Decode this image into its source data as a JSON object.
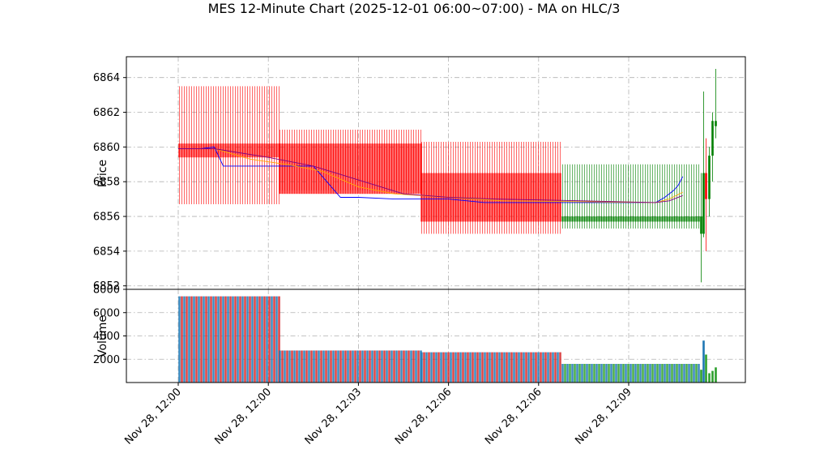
{
  "chart_data": {
    "type": "candlestick",
    "title": "MES 12-Minute Chart (2025-12-01 06:00~07:00) - MA on HLC/3",
    "x_tick_labels": [
      "Nov 28, 12:00",
      "Nov 28, 12:00",
      "Nov 28, 12:03",
      "Nov 28, 12:06",
      "Nov 28, 12:06",
      "Nov 28, 12:09"
    ],
    "price_panel": {
      "ylabel": "Price",
      "ylim": [
        6851.8,
        6865.2
      ],
      "yticks": [
        6852,
        6854,
        6856,
        6858,
        6860,
        6862,
        6864
      ],
      "grid": true,
      "candle_groups": [
        {
          "name": "",
          "color": "#ff0000",
          "open": 6860.2,
          "close": 6859.4,
          "high": 6863.5,
          "low": 6856.7
        },
        {
          "name": "",
          "color": "#ff0000",
          "open": 6860.2,
          "close": 6857.3,
          "high": 6861.0,
          "low": 6857.5
        },
        {
          "name": "",
          "color": "#ff0000",
          "open": 6858.5,
          "close": 6855.7,
          "high": 6860.3,
          "low": 6855.0
        },
        {
          "name": "",
          "color": "#008000",
          "open": 6855.7,
          "close": 6856.0,
          "high": 6859.0,
          "low": 6855.3
        }
      ],
      "last_candles": [
        {
          "open": 6856.0,
          "close": 6855.0,
          "high": 6858.5,
          "low": 6852.2,
          "color": "#008000"
        },
        {
          "open": 6855.0,
          "close": 6858.5,
          "high": 6863.2,
          "low": 6854.8,
          "color": "#008000"
        },
        {
          "open": 6858.5,
          "close": 6857.0,
          "high": 6860.5,
          "low": 6854.0,
          "color": "#ff0000"
        },
        {
          "open": 6857.0,
          "close": 6859.5,
          "high": 6860.0,
          "low": 6856.0,
          "color": "#008000"
        },
        {
          "open": 6859.5,
          "close": 6861.5,
          "high": 6862.0,
          "low": 6858.0,
          "color": "#008000"
        },
        {
          "open": 6861.5,
          "close": 6861.2,
          "high": 6864.5,
          "low": 6860.5,
          "color": "#008000"
        }
      ],
      "moving_averages": [
        {
          "name": "",
          "color": "#0000ff",
          "points": [
            [
              0.0,
              6859.9
            ],
            [
              0.25,
              6859.9
            ],
            [
              0.4,
              6860.0
            ],
            [
              0.5,
              6858.9
            ],
            [
              0.6,
              6858.9
            ],
            [
              1.5,
              6858.9
            ],
            [
              1.8,
              6857.1
            ],
            [
              2.0,
              6857.1
            ],
            [
              2.4,
              6857.0
            ],
            [
              3.0,
              6857.0
            ],
            [
              3.4,
              6856.8
            ],
            [
              5.3,
              6856.8
            ],
            [
              5.4,
              6857.1
            ],
            [
              5.5,
              6857.5
            ],
            [
              5.55,
              6857.8
            ],
            [
              5.6,
              6858.3
            ]
          ]
        },
        {
          "name": "",
          "color": "#ffa500",
          "points": [
            [
              0.0,
              6859.9
            ],
            [
              0.2,
              6859.9
            ],
            [
              0.4,
              6859.9
            ],
            [
              0.8,
              6859.3
            ],
            [
              1.2,
              6859.0
            ],
            [
              1.6,
              6858.6
            ],
            [
              2.0,
              6857.7
            ],
            [
              2.4,
              6857.3
            ],
            [
              3.0,
              6857.1
            ],
            [
              3.6,
              6856.9
            ],
            [
              5.3,
              6856.8
            ],
            [
              5.45,
              6857.0
            ],
            [
              5.6,
              6857.4
            ]
          ]
        },
        {
          "name": "",
          "color": "#800080",
          "points": [
            [
              0.0,
              6859.9
            ],
            [
              0.4,
              6859.9
            ],
            [
              1.0,
              6859.4
            ],
            [
              1.5,
              6858.9
            ],
            [
              2.0,
              6858.1
            ],
            [
              2.5,
              6857.3
            ],
            [
              3.0,
              6857.1
            ],
            [
              3.5,
              6857.0
            ],
            [
              4.5,
              6856.9
            ],
            [
              5.3,
              6856.8
            ],
            [
              5.45,
              6856.9
            ],
            [
              5.6,
              6857.2
            ]
          ]
        }
      ]
    },
    "volume_panel": {
      "ylabel": "Volume",
      "ylim": [
        0,
        8000
      ],
      "yticks": [
        2000,
        4000,
        6000,
        8000
      ],
      "grid": true,
      "group_volumes": [
        7400,
        2750,
        2600,
        1600
      ],
      "last_volumes": [
        1100,
        3600,
        2400,
        800,
        1000,
        1300
      ]
    }
  }
}
